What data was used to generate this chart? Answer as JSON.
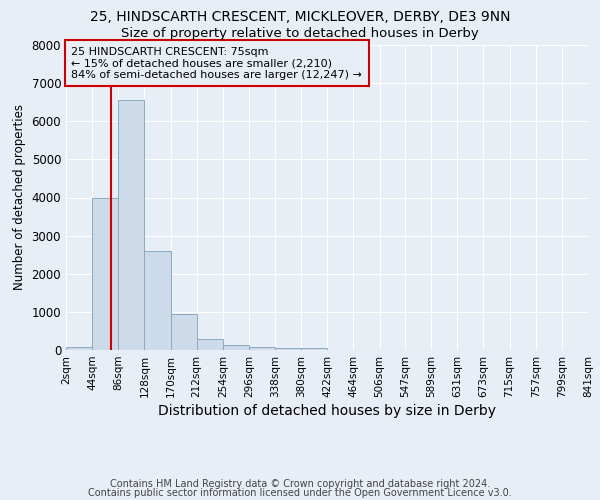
{
  "title1": "25, HINDSCARTH CRESCENT, MICKLEOVER, DERBY, DE3 9NN",
  "title2": "Size of property relative to detached houses in Derby",
  "xlabel": "Distribution of detached houses by size in Derby",
  "ylabel": "Number of detached properties",
  "bins": [
    2,
    44,
    86,
    128,
    170,
    212,
    254,
    296,
    338,
    380,
    422,
    464,
    506,
    547,
    589,
    631,
    673,
    715,
    757,
    799,
    841
  ],
  "bar_heights": [
    75,
    4000,
    6550,
    2600,
    950,
    300,
    120,
    80,
    55,
    50,
    0,
    0,
    0,
    0,
    0,
    0,
    0,
    0,
    0,
    0
  ],
  "bar_color": "#cddaea",
  "bar_edge_color": "#8aaabf",
  "property_size": 75,
  "property_line_color": "#cc0000",
  "annotation_text": "25 HINDSCARTH CRESCENT: 75sqm\n← 15% of detached houses are smaller (2,210)\n84% of semi-detached houses are larger (12,247) →",
  "annotation_box_color": "#cc0000",
  "ylim": [
    0,
    8000
  ],
  "yticks": [
    0,
    1000,
    2000,
    3000,
    4000,
    5000,
    6000,
    7000,
    8000
  ],
  "footer1": "Contains HM Land Registry data © Crown copyright and database right 2024.",
  "footer2": "Contains public sector information licensed under the Open Government Licence v3.0.",
  "bg_color": "#e8eef5",
  "plot_bg_color": "#e8eef5",
  "grid_color": "#ffffff",
  "title1_fontsize": 10,
  "title2_fontsize": 9.5,
  "xlabel_fontsize": 10,
  "ylabel_fontsize": 8.5,
  "tick_fontsize": 7.5,
  "annotation_fontsize": 8,
  "footer_fontsize": 7
}
